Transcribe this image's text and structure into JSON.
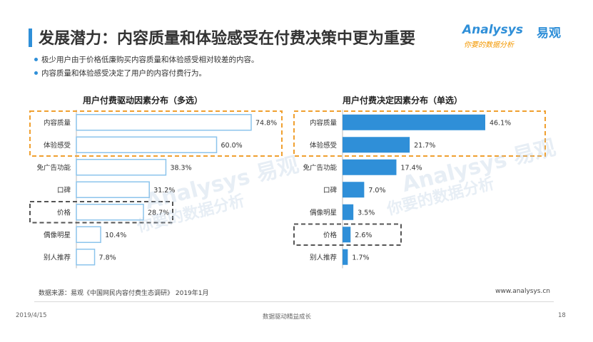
{
  "header": {
    "title": "发展潜力：内容质量和体验感受在付费决策中更为重要",
    "logo_en": "Analysys",
    "logo_cn": "易观",
    "logo_tagline": "你要的数据分析"
  },
  "bullets": [
    "极少用户由于价格低廉购买内容质量和体验感受相对较差的内容。",
    "内容质量和体验感受决定了用户的内容付费行为。"
  ],
  "colors": {
    "accent": "#2f8fd8",
    "highlight": "#f0a030",
    "dashed": "#555555"
  },
  "chart_data": [
    {
      "type": "bar",
      "orientation": "horizontal",
      "title": "用户付费驱动因素分布（多选）",
      "categories": [
        "内容质量",
        "体验感受",
        "免广告功能",
        "口碑",
        "价格",
        "偶像明星",
        "别人推荐"
      ],
      "values": [
        74.8,
        60.0,
        38.3,
        31.2,
        28.7,
        10.4,
        7.8
      ],
      "value_labels": [
        "74.8%",
        "60.0%",
        "38.3%",
        "31.2%",
        "28.7%",
        "10.4%",
        "7.8%"
      ],
      "style": "outlined",
      "highlight_orange": [
        "内容质量",
        "体验感受"
      ],
      "highlight_gray": [
        "价格"
      ]
    },
    {
      "type": "bar",
      "orientation": "horizontal",
      "title": "用户付费决定因素分布（单选）",
      "categories": [
        "内容质量",
        "体验感受",
        "免广告功能",
        "口碑",
        "偶像明星",
        "价格",
        "别人推荐"
      ],
      "values": [
        46.1,
        21.7,
        17.4,
        7.0,
        3.5,
        2.6,
        1.7
      ],
      "value_labels": [
        "46.1%",
        "21.7%",
        "17.4%",
        "7.0%",
        "3.5%",
        "2.6%",
        "1.7%"
      ],
      "style": "filled",
      "highlight_orange": [
        "内容质量",
        "体验感受"
      ],
      "highlight_gray": [
        "价格"
      ]
    }
  ],
  "watermarks": [
    "Analysys 易观",
    "你要的数据分析"
  ],
  "source": "数据来源：易观《中国网民内容付费生态调研》 2019年1月",
  "website": "www.analysys.cn",
  "footer": {
    "date": "2019/4/15",
    "center": "数据驱动精益成长",
    "page": "18"
  }
}
